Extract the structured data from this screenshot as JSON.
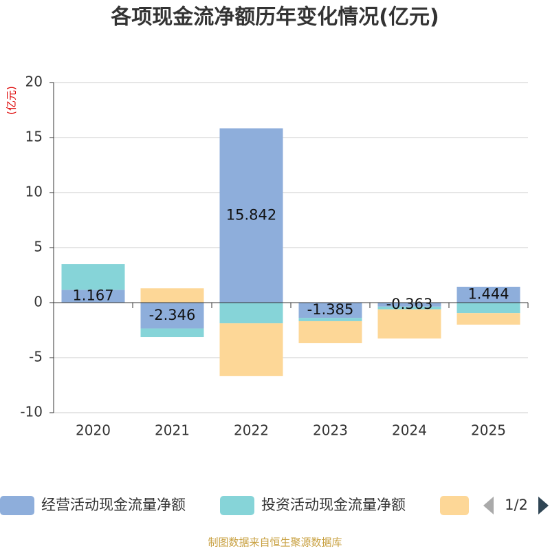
{
  "chart_data": {
    "type": "stacked_bar",
    "title": "各项现金流净额历年变化情况(亿元)",
    "y_axis_label": "(亿元)",
    "categories": [
      "2020",
      "2021",
      "2022",
      "2023",
      "2024",
      "2025"
    ],
    "series": [
      {
        "name": "经营活动现金流量净额",
        "color": "#8eaedb",
        "values": [
          1.167,
          -2.346,
          15.842,
          -1.385,
          -0.363,
          1.444
        ]
      },
      {
        "name": "投资活动现金流量净额",
        "color": "#86d4d8",
        "values": [
          2.33,
          -0.78,
          -1.88,
          -0.3,
          -0.25,
          -0.95
        ]
      },
      {
        "color": "#fdd797",
        "values": [
          0,
          1.3,
          -4.8,
          -2.0,
          -2.65,
          -1.05
        ]
      }
    ],
    "ylim": [
      -10,
      20
    ],
    "yticks": [
      -10,
      -5,
      0,
      5,
      10,
      15,
      20
    ],
    "grid": true,
    "legend_page": "1/2",
    "source": "制图数据来自恒生聚源数据库"
  }
}
